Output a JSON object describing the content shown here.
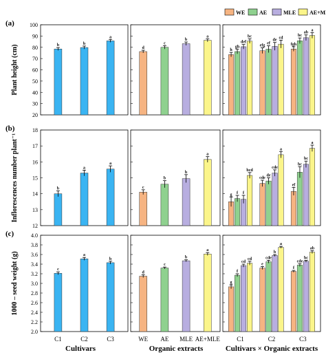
{
  "legend": {
    "position": "top-right",
    "items": [
      {
        "label": "WE",
        "color": "#f6b482"
      },
      {
        "label": "AE",
        "color": "#8fd18f"
      },
      {
        "label": "MLE",
        "color": "#b8aee0"
      },
      {
        "label": "AE+MLE",
        "color": "#fbf58a"
      }
    ]
  },
  "colors": {
    "cultivar": "#3ab4f2",
    "WE": "#f6b482",
    "AE": "#8fd18f",
    "MLE": "#b8aee0",
    "AEMLE": "#fbf58a"
  },
  "chart_data": [
    {
      "panel": "(a)",
      "type": "bar",
      "ylabel": "Plant height (cm)",
      "ylim": [
        20,
        100
      ],
      "ticks": [
        20,
        30,
        40,
        50,
        60,
        70,
        80,
        90,
        100
      ],
      "cultivars": {
        "categories": [
          "C1",
          "C2",
          "C3"
        ],
        "values": [
          78.5,
          79.8,
          85.7
        ],
        "errors": [
          1.3,
          1.3,
          1.3
        ],
        "letters": [
          "b",
          "b",
          "a"
        ]
      },
      "extracts": {
        "categories": [
          "WE",
          "AE",
          "MLE",
          "AE+MLE"
        ],
        "values": [
          76.2,
          80.0,
          83.2,
          86.2
        ],
        "errors": [
          1.2,
          1.5,
          1.5,
          1.3
        ],
        "letters": [
          "d",
          "c",
          "b",
          "a"
        ]
      },
      "interaction": {
        "categories": [
          "C1",
          "C2",
          "C3"
        ],
        "values": [
          [
            73.5,
            76.2,
            80.5,
            85.5
          ],
          [
            77.0,
            78.3,
            80.8,
            82.8
          ],
          [
            78.5,
            85.8,
            88.5,
            90.5
          ]
        ],
        "errors": [
          [
            2.0,
            2.0,
            2.0,
            2.0
          ],
          [
            2.5,
            3.0,
            3.5,
            3.5
          ],
          [
            2.0,
            2.5,
            2.5,
            2.5
          ]
        ],
        "letters": [
          [
            "h",
            "gh",
            "def",
            "bc"
          ],
          [
            "efg",
            "ef",
            "de",
            "cd"
          ],
          [
            "fgh",
            "bc",
            "ab",
            "a"
          ]
        ]
      }
    },
    {
      "panel": "(b)",
      "type": "bar",
      "ylabel": "Inflorescences number plant⁻¹",
      "ylim": [
        12,
        18
      ],
      "ticks": [
        12,
        13,
        14,
        15,
        16,
        17,
        18
      ],
      "cultivars": {
        "categories": [
          "C1",
          "C2",
          "C3"
        ],
        "values": [
          14.0,
          15.3,
          15.55
        ],
        "errors": [
          0.18,
          0.18,
          0.2
        ],
        "letters": [
          "b",
          "a",
          "a"
        ]
      },
      "extracts": {
        "categories": [
          "WE",
          "AE",
          "MLE",
          "AE+MLE"
        ],
        "values": [
          14.1,
          14.6,
          14.95,
          16.15
        ],
        "errors": [
          0.15,
          0.22,
          0.25,
          0.18
        ],
        "letters": [
          "c",
          "b",
          "b",
          "a"
        ]
      },
      "interaction": {
        "categories": [
          "C1",
          "C2",
          "C3"
        ],
        "values": [
          [
            13.5,
            13.7,
            13.65,
            15.15
          ],
          [
            14.65,
            14.8,
            15.3,
            16.45
          ],
          [
            14.15,
            15.35,
            15.85,
            16.85
          ]
        ],
        "errors": [
          [
            0.3,
            0.2,
            0.25,
            0.18
          ],
          [
            0.2,
            0.2,
            0.2,
            0.2
          ],
          [
            0.25,
            0.35,
            0.2,
            0.2
          ]
        ],
        "letters": [
          [
            "g",
            "f",
            "f",
            "bcd"
          ],
          [
            "cde",
            "de",
            "cde",
            "a"
          ],
          [
            "ef",
            "bc",
            "bc",
            "a"
          ]
        ]
      }
    },
    {
      "panel": "(c)",
      "type": "bar",
      "ylabel": "1000 – seed weight (g)",
      "ylim": [
        2.0,
        4.0
      ],
      "ticks": [
        "2.0",
        "2.2",
        "2.4",
        "2.6",
        "2.8",
        "3.0",
        "3.2",
        "3.4",
        "3.6",
        "3.8",
        "4.0"
      ],
      "cultivars": {
        "categories": [
          "C1",
          "C2",
          "C3"
        ],
        "values": [
          3.21,
          3.51,
          3.43
        ],
        "errors": [
          0.03,
          0.03,
          0.03
        ],
        "letters": [
          "c",
          "a",
          "b"
        ]
      },
      "extracts": {
        "categories": [
          "WE",
          "AE",
          "MLE",
          "AE+MLE"
        ],
        "values": [
          3.15,
          3.32,
          3.47,
          3.61
        ],
        "errors": [
          0.03,
          0.02,
          0.02,
          0.03
        ],
        "letters": [
          "d",
          "c",
          "b",
          "a"
        ]
      },
      "interaction": {
        "categories": [
          "C1",
          "C2",
          "C3"
        ],
        "values": [
          [
            2.93,
            3.17,
            3.37,
            3.42
          ],
          [
            3.32,
            3.45,
            3.58,
            3.75
          ],
          [
            3.25,
            3.38,
            3.46,
            3.65
          ]
        ],
        "errors": [
          [
            0.04,
            0.03,
            0.03,
            0.04
          ],
          [
            0.03,
            0.03,
            0.02,
            0.02
          ],
          [
            0.02,
            0.03,
            0.02,
            0.03
          ]
        ],
        "letters": [
          [
            "g",
            "f",
            "cd",
            "cd"
          ],
          [
            "e",
            "cde",
            "b",
            "a"
          ],
          [
            "f",
            "cde",
            "bc",
            "ab"
          ]
        ]
      }
    }
  ],
  "xlabels": {
    "cultivars": "Cultivars",
    "extracts": "Organic extracts",
    "interaction": "Cultivars × Organic extracts"
  }
}
